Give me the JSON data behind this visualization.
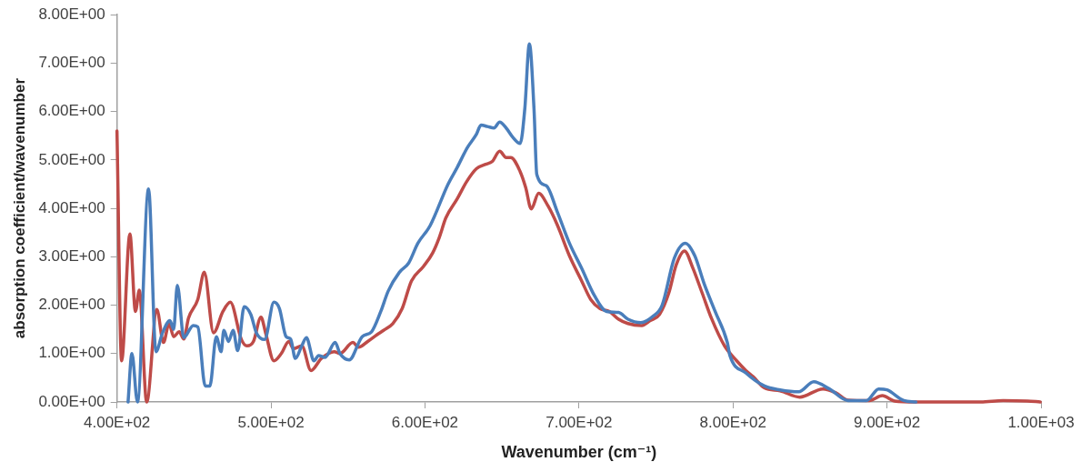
{
  "chart_data": {
    "type": "line",
    "xlabel": "Wavenumber (cm⁻¹)",
    "ylabel": "absorption coefficient/wavenumber",
    "xlim": [
      400,
      1000
    ],
    "ylim": [
      0,
      8
    ],
    "xticks": [
      {
        "value": 400,
        "label": "4.00E+02"
      },
      {
        "value": 500,
        "label": "5.00E+02"
      },
      {
        "value": 600,
        "label": "6.00E+02"
      },
      {
        "value": 700,
        "label": "7.00E+02"
      },
      {
        "value": 800,
        "label": "8.00E+02"
      },
      {
        "value": 900,
        "label": "9.00E+02"
      },
      {
        "value": 1000,
        "label": "1.00E+03"
      }
    ],
    "yticks": [
      {
        "value": 0,
        "label": "0.00E+00"
      },
      {
        "value": 1,
        "label": "1.00E+00"
      },
      {
        "value": 2,
        "label": "2.00E+00"
      },
      {
        "value": 3,
        "label": "3.00E+00"
      },
      {
        "value": 4,
        "label": "4.00E+00"
      },
      {
        "value": 5,
        "label": "5.00E+00"
      },
      {
        "value": 6,
        "label": "6.00E+00"
      },
      {
        "value": 7,
        "label": "7.00E+00"
      },
      {
        "value": 8,
        "label": "8.00E+00"
      }
    ],
    "grid": false,
    "legend": false,
    "marker": "none",
    "line_style": "solid",
    "series": [
      {
        "color": "#4a7ebb",
        "x": [
          407.2,
          409.7,
          413.3,
          420.5,
          425.3,
          429.6,
          434.4,
          436.8,
          439.2,
          443.4,
          449.5,
          452.5,
          457.3,
          460.3,
          464.5,
          467.6,
          469.4,
          472.4,
          475.4,
          478.4,
          482.6,
          486.9,
          490.5,
          495.9,
          501.9,
          505.5,
          509.8,
          512.8,
          515.8,
          520,
          523,
          527.9,
          530.9,
          535.1,
          541.7,
          544.8,
          550.8,
          559.2,
          565.3,
          571.3,
          576.1,
          583.4,
          589.4,
          595.4,
          603.3,
          615,
          621,
          627.4,
          633.4,
          636.4,
          640.6,
          644.8,
          648.5,
          652.7,
          657,
          661.8,
          664.8,
          667.8,
          670.8,
          672.6,
          678.7,
          685.9,
          693.8,
          701.6,
          710,
          717.9,
          725.7,
          731.8,
          740.2,
          748,
          754,
          761.9,
          769.1,
          775.2,
          781.2,
          788.4,
          796.3,
          798,
          808.3,
          820.4,
          830.6,
          842.7,
          852.4,
          862.6,
          874.7,
          886.7,
          894.6,
          900,
          910.9,
          918.7
        ],
        "values": [
          0,
          1.0,
          0,
          4.4,
          1.04,
          1.43,
          1.68,
          1.5,
          2.41,
          1.33,
          1.58,
          1.55,
          0.33,
          0.33,
          1.35,
          1.04,
          1.48,
          1.25,
          1.48,
          1.06,
          1.97,
          1.81,
          1.43,
          1.29,
          2.06,
          1.93,
          1.35,
          1.3,
          0.9,
          1.16,
          1.33,
          0.85,
          0.96,
          0.92,
          1.23,
          1.0,
          0.87,
          1.35,
          1.45,
          1.87,
          2.29,
          2.68,
          2.87,
          3.28,
          3.64,
          4.5,
          4.85,
          5.25,
          5.53,
          5.72,
          5.69,
          5.66,
          5.78,
          5.66,
          5.47,
          5.34,
          6.05,
          7.4,
          6.05,
          4.7,
          4.47,
          3.93,
          3.28,
          2.77,
          2.2,
          1.87,
          1.85,
          1.71,
          1.64,
          1.77,
          2.0,
          2.97,
          3.28,
          3.02,
          2.45,
          1.87,
          1.23,
          0.96,
          0.6,
          0.33,
          0.25,
          0.21,
          0.42,
          0.27,
          0.03,
          0.03,
          0.27,
          0.25,
          0.03,
          0
        ]
      },
      {
        "color": "#be4b48",
        "x": [
          400,
          403,
          408.4,
          412,
          414.5,
          419.3,
          425.9,
          430.2,
          433.8,
          436.8,
          440.4,
          443.4,
          446.4,
          452.5,
          456.7,
          462.7,
          468.8,
          473.6,
          480.8,
          484.4,
          488.6,
          493.5,
          496.5,
          501.9,
          506.7,
          511.6,
          514.6,
          520,
          526,
          532.7,
          541.1,
          544.8,
          553.2,
          556.8,
          562.8,
          568.9,
          573.1,
          579.1,
          585.2,
          591.2,
          599,
          605,
          609.3,
          613.5,
          621,
          627,
          633.4,
          639.4,
          643.7,
          648.5,
          652.7,
          655.7,
          661.8,
          665.4,
          669,
          673.8,
          679.9,
          685.9,
          693.8,
          701.6,
          707.6,
          713.6,
          719.7,
          725.7,
          731.8,
          740.8,
          746.2,
          752.3,
          758.3,
          763.1,
          768.5,
          773.9,
          780,
          786,
          794.5,
          802.4,
          808.4,
          813.2,
          820.4,
          830.6,
          843.3,
          858.4,
          866.8,
          874.7,
          888.5,
          897,
          904.8,
          918.7,
          960.9,
          975.4,
          991.1,
          999.5
        ],
        "values": [
          5.6,
          0.85,
          3.47,
          1.87,
          2.31,
          0,
          1.91,
          1.23,
          1.62,
          1.35,
          1.45,
          1.3,
          1.73,
          2.12,
          2.68,
          1.43,
          1.87,
          2.06,
          1.29,
          1.16,
          1.25,
          1.75,
          1.43,
          0.85,
          1.0,
          1.25,
          1.1,
          1.16,
          0.65,
          0.9,
          1.04,
          1.0,
          1.23,
          1.13,
          1.25,
          1.39,
          1.48,
          1.62,
          1.93,
          2.5,
          2.8,
          3.08,
          3.4,
          3.8,
          4.2,
          4.55,
          4.82,
          4.91,
          4.97,
          5.18,
          5.05,
          5.05,
          4.76,
          4.43,
          3.99,
          4.31,
          4.05,
          3.66,
          3.02,
          2.51,
          2.12,
          1.93,
          1.87,
          1.71,
          1.62,
          1.58,
          1.68,
          1.81,
          2.25,
          2.83,
          3.12,
          2.77,
          2.25,
          1.73,
          1.16,
          0.85,
          0.65,
          0.52,
          0.29,
          0.23,
          0.1,
          0.27,
          0.19,
          0.04,
          0.03,
          0.13,
          0.02,
          0,
          0,
          0.03,
          0.02,
          0
        ]
      }
    ]
  }
}
